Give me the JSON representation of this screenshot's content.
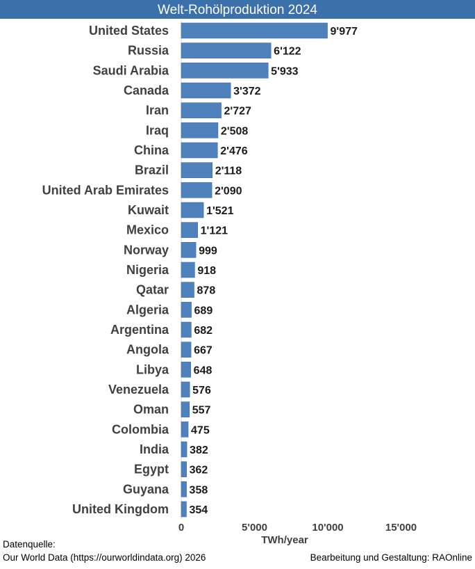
{
  "chart_data": {
    "type": "bar",
    "orientation": "horizontal",
    "title": "Welt-Rohölproduktion 2024",
    "xlabel": "TWh/year",
    "ylabel": "",
    "xlim": [
      0,
      20000
    ],
    "xticks": [
      0,
      5000,
      10000,
      15000
    ],
    "xtick_labels": [
      "0",
      "5'000",
      "10'000",
      "15'000"
    ],
    "categories": [
      "United States",
      "Russia",
      "Saudi Arabia",
      "Canada",
      "Iran",
      "Iraq",
      "China",
      "Brazil",
      "United Arab Emirates",
      "Kuwait",
      "Mexico",
      "Norway",
      "Nigeria",
      "Qatar",
      "Algeria",
      "Argentina",
      "Angola",
      "Libya",
      "Venezuela",
      "Oman",
      "Colombia",
      "India",
      "Egypt",
      "Guyana",
      "United Kingdom"
    ],
    "values": [
      9977,
      6122,
      5933,
      3372,
      2727,
      2508,
      2476,
      2118,
      2090,
      1521,
      1121,
      999,
      918,
      878,
      689,
      682,
      667,
      648,
      576,
      557,
      475,
      382,
      362,
      358,
      354
    ],
    "value_labels": [
      "9'977",
      "6'122",
      "5'933",
      "3'372",
      "2'727",
      "2'508",
      "2'476",
      "2'118",
      "2'090",
      "1'521",
      "1'121",
      "999",
      "918",
      "878",
      "689",
      "682",
      "667",
      "648",
      "576",
      "557",
      "475",
      "382",
      "362",
      "358",
      "354"
    ],
    "grid": false,
    "bar_color": "#4f81bd",
    "title_bg_color": "#3b70ab"
  },
  "footer": {
    "source_label": "Datenquelle:",
    "source": "Our World Data (https://ourworldindata.org) 2026",
    "credit": "Bearbeitung und Gestaltung: RAOnline"
  }
}
